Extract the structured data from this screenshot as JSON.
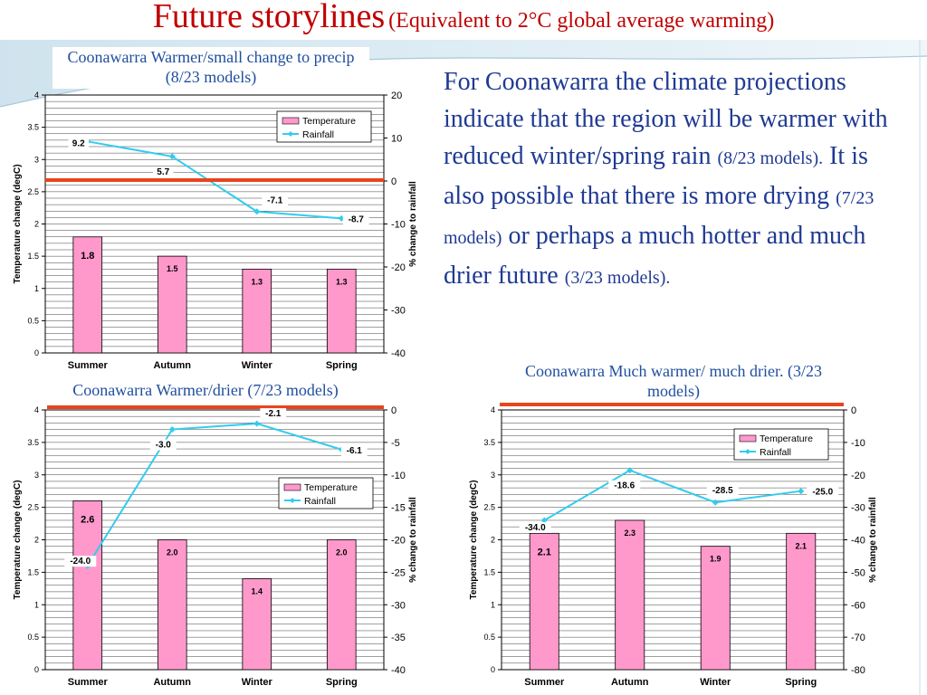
{
  "title": {
    "main": "Future storylines",
    "sub": "(Equivalent to 2°C global average warming)"
  },
  "body_text": {
    "p1": "For Coonawarra the climate projections indicate that the region will be warmer with reduced winter/spring rain ",
    "p1_small": "(8/23 models).",
    "p2": " It is also possible that there is more drying ",
    "p2_small": "(7/23 models)",
    "p3": " or perhaps a much hotter and much drier future ",
    "p3_small": "(3/23 models)."
  },
  "colors": {
    "bar": "#ff99cc",
    "line": "#33ccee",
    "accent": "#e8441c",
    "title": "#c00000",
    "text": "#1f3a93"
  },
  "chart_data": [
    {
      "type": "bar",
      "title": "Coonawarra Warmer/small change to precip (8/23 models)",
      "categories": [
        "Summer",
        "Autumn",
        "Winter",
        "Spring"
      ],
      "ylabel": "Temperature change (degC)",
      "y2label": "% change to rainfall",
      "ylim": [
        0,
        4
      ],
      "y2lim": [
        -40,
        20
      ],
      "yticks": [
        "0",
        "0.5",
        "1",
        "1.5",
        "2",
        "2.5",
        "3",
        "3.5",
        "4"
      ],
      "y2ticks": [
        "-40",
        "-30",
        "-20",
        "-10",
        "0",
        "10",
        "20"
      ],
      "legend": [
        "Temperature",
        "Rainfall"
      ],
      "legend_position": "top-right",
      "bar_series": {
        "name": "Temperature",
        "values": [
          1.8,
          1.5,
          1.3,
          1.3
        ],
        "labels": [
          "1.8",
          "1.5",
          "1.3",
          "1.3"
        ]
      },
      "line_series": {
        "name": "Rainfall",
        "values": [
          9.2,
          5.7,
          -7.1,
          -8.7
        ],
        "labels": [
          "9.2",
          "5.7",
          "-7.1",
          "-8.7"
        ]
      }
    },
    {
      "type": "bar",
      "title": "Coonawarra Warmer/drier  (7/23 models)",
      "categories": [
        "Summer",
        "Autumn",
        "Winter",
        "Spring"
      ],
      "ylabel": "Temperature change (degC)",
      "y2label": "% change to rainfall",
      "ylim": [
        0,
        4
      ],
      "y2lim": [
        -40,
        0
      ],
      "yticks": [
        "0",
        "0.5",
        "1",
        "1.5",
        "2",
        "2.5",
        "3",
        "3.5",
        "4"
      ],
      "y2ticks": [
        "-40",
        "-35",
        "-30",
        "-25",
        "-20",
        "-15",
        "-10",
        "-5",
        "0"
      ],
      "legend": [
        "Temperature",
        "Rainfall"
      ],
      "legend_position": "center-right",
      "bar_series": {
        "name": "Temperature",
        "values": [
          2.6,
          2.0,
          1.4,
          2.0
        ],
        "labels": [
          "2.6",
          "2.0",
          "1.4",
          "2.0"
        ]
      },
      "line_series": {
        "name": "Rainfall",
        "values": [
          -24.0,
          -3.0,
          -2.1,
          -6.1
        ],
        "labels": [
          "-24.0",
          "-3.0",
          "-2.1",
          "-6.1"
        ]
      }
    },
    {
      "type": "bar",
      "title": "Coonawarra Much warmer/ much drier. (3/23 models)",
      "categories": [
        "Summer",
        "Autumn",
        "Winter",
        "Spring"
      ],
      "ylabel": "Temperature change (degC)",
      "y2label": "% change to rainfall",
      "ylim": [
        0,
        4
      ],
      "y2lim": [
        -80,
        0
      ],
      "yticks": [
        "0",
        "0.5",
        "1",
        "1.5",
        "2",
        "2.5",
        "3",
        "3.5",
        "4"
      ],
      "y2ticks": [
        "-80",
        "-70",
        "-60",
        "-50",
        "-40",
        "-30",
        "-20",
        "-10",
        "0"
      ],
      "legend": [
        "Temperature",
        "Rainfall"
      ],
      "legend_position": "top-right",
      "bar_series": {
        "name": "Temperature",
        "values": [
          2.1,
          2.3,
          1.9,
          2.1
        ],
        "labels": [
          "2.1",
          "2.3",
          "1.9",
          "2.1"
        ]
      },
      "line_series": {
        "name": "Rainfall",
        "values": [
          -34.0,
          -18.6,
          -28.5,
          -25.0
        ],
        "labels": [
          "-34.0",
          "-18.6",
          "-28.5",
          "-25.0"
        ]
      }
    }
  ]
}
